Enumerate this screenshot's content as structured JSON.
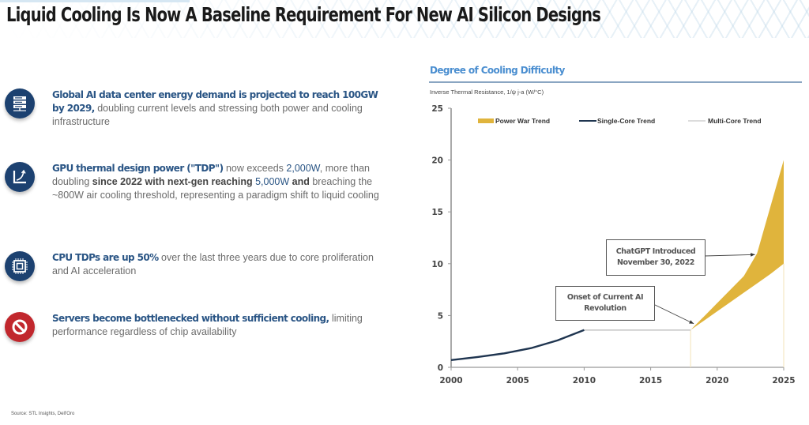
{
  "page": {
    "title": "Liquid Cooling Is Now A Baseline Requirement For New AI Silicon Designs",
    "source": "Source: STL Insights, Dell'Oro"
  },
  "bullets": [
    {
      "icon": "server-rack-icon",
      "parts": [
        {
          "text": "Global AI data center energy demand is projected to reach 100GW by 2029,",
          "style": "hl"
        },
        {
          "text": " doubling current levels and stressing both power and cooling infrastructure",
          "style": "plain"
        }
      ]
    },
    {
      "icon": "growth-curve-icon",
      "parts": [
        {
          "text": "GPU thermal design power (\"TDP\")",
          "style": "hl"
        },
        {
          "text": " now exceeds ",
          "style": "plain"
        },
        {
          "text": "2,000W",
          "style": "hl-plain"
        },
        {
          "text": ", more than doubling ",
          "style": "plain"
        },
        {
          "text": "since 2022 with next-gen reaching ",
          "style": "strong"
        },
        {
          "text": "5,000W",
          "style": "hl-plain"
        },
        {
          "text": " and",
          "style": "strong"
        },
        {
          "text": " breaching the ~800W air cooling threshold, representing a paradigm shift to liquid cooling",
          "style": "plain"
        }
      ]
    },
    {
      "icon": "cpu-chip-icon",
      "parts": [
        {
          "text": "CPU TDPs are up 50%",
          "style": "hl"
        },
        {
          "text": " over the last three years due to core proliferation and AI acceleration",
          "style": "plain"
        }
      ]
    },
    {
      "icon": "prohibited-icon",
      "parts": [
        {
          "text": "Servers become bottlenecked without sufficient cooling,",
          "style": "hl"
        },
        {
          "text": " limiting performance regardless of chip availability",
          "style": "plain"
        }
      ]
    }
  ],
  "colors": {
    "navy": "#1c4170",
    "red": "#c1272d",
    "gold": "#e0b43c",
    "single_core": "#1f3550",
    "multi_core": "#c8c8c8",
    "title_blue": "#4a8ed0"
  },
  "chart_data": {
    "type": "area",
    "title": "Degree of Cooling Difficulty",
    "ylabel": "Inverse Thermal Resistance, 1/ψ j-a (W/°C)",
    "xlabel": "",
    "xlim": [
      2000,
      2025
    ],
    "ylim": [
      0,
      25
    ],
    "x_ticks": [
      "2000",
      "2005",
      "2010",
      "2015",
      "2020",
      "2025"
    ],
    "y_ticks": [
      "0",
      "5",
      "10",
      "15",
      "20",
      "25"
    ],
    "grid": false,
    "legend": {
      "position": "top",
      "entries": [
        "Power War Trend",
        "Single-Core Trend",
        "Multi-Core Trend"
      ]
    },
    "series": [
      {
        "name": "Single-Core Trend",
        "kind": "line",
        "x": [
          2000,
          2002,
          2004,
          2006,
          2008,
          2010
        ],
        "y": [
          0.7,
          1.0,
          1.35,
          1.85,
          2.6,
          3.6
        ]
      },
      {
        "name": "Multi-Core Trend",
        "kind": "line",
        "x": [
          2010,
          2018
        ],
        "y": [
          3.6,
          3.6
        ]
      },
      {
        "name": "Power War Trend",
        "kind": "band",
        "x": [
          2018,
          2020,
          2022,
          2023,
          2024,
          2025
        ],
        "y_low": [
          3.6,
          5.4,
          7.2,
          8.1,
          9.0,
          10.0
        ],
        "y_high": [
          3.6,
          6.2,
          8.8,
          11.0,
          15.5,
          20.0
        ]
      }
    ],
    "annotations": [
      {
        "text": "Onset of Current AI Revolution",
        "x": 2018,
        "y": 3.6
      },
      {
        "text": "ChatGPT Introduced November 30, 2022",
        "x": 2022.9,
        "y": 10.8
      }
    ]
  }
}
